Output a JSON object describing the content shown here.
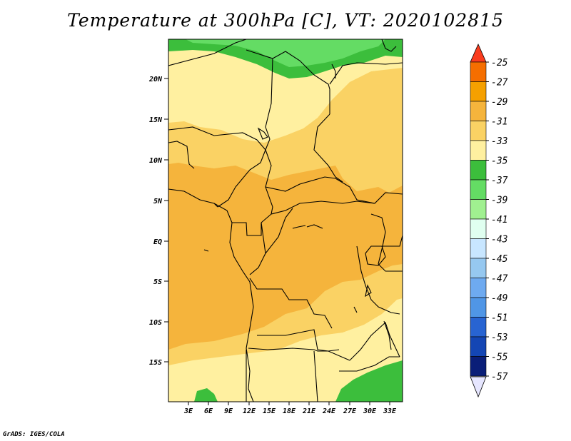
{
  "title": "Temperature at 300hPa [C], VT: 2020102815",
  "credit": "GrADS: IGES/COLA",
  "map": {
    "region": "Central Africa",
    "x_ticks": [
      "3E",
      "6E",
      "9E",
      "12E",
      "15E",
      "18E",
      "21E",
      "24E",
      "27E",
      "30E",
      "33E"
    ],
    "y_ticks": [
      "20N",
      "15N",
      "10N",
      "5N",
      "EQ",
      "5S",
      "10S",
      "15S"
    ]
  },
  "colorbar": {
    "labels": [
      "-25",
      "-27",
      "-29",
      "-31",
      "-33",
      "-35",
      "-37",
      "-39",
      "-41",
      "-43",
      "-45",
      "-47",
      "-49",
      "-51",
      "-53",
      "-55",
      "-57"
    ],
    "colors": [
      "#fa3c1e",
      "#f56e00",
      "#f5a000",
      "#f5b43c",
      "#fad264",
      "#fff0a0",
      "#3cbe3c",
      "#64dc64",
      "#a0f090",
      "#e0fff0",
      "#c8e6ff",
      "#96c8f0",
      "#6eaaf0",
      "#5096e6",
      "#2864d2",
      "#1446b4",
      "#0a1e78"
    ],
    "top_triangle": "#fa3c1e",
    "bottom_triangle": "#e6e6ff"
  },
  "fields": {
    "base": "#f5b43c",
    "level_-31": "#fad264",
    "level_-33": "#fff0a0",
    "level_-35": "#3cbe3c",
    "level_-37": "#64dc64"
  }
}
